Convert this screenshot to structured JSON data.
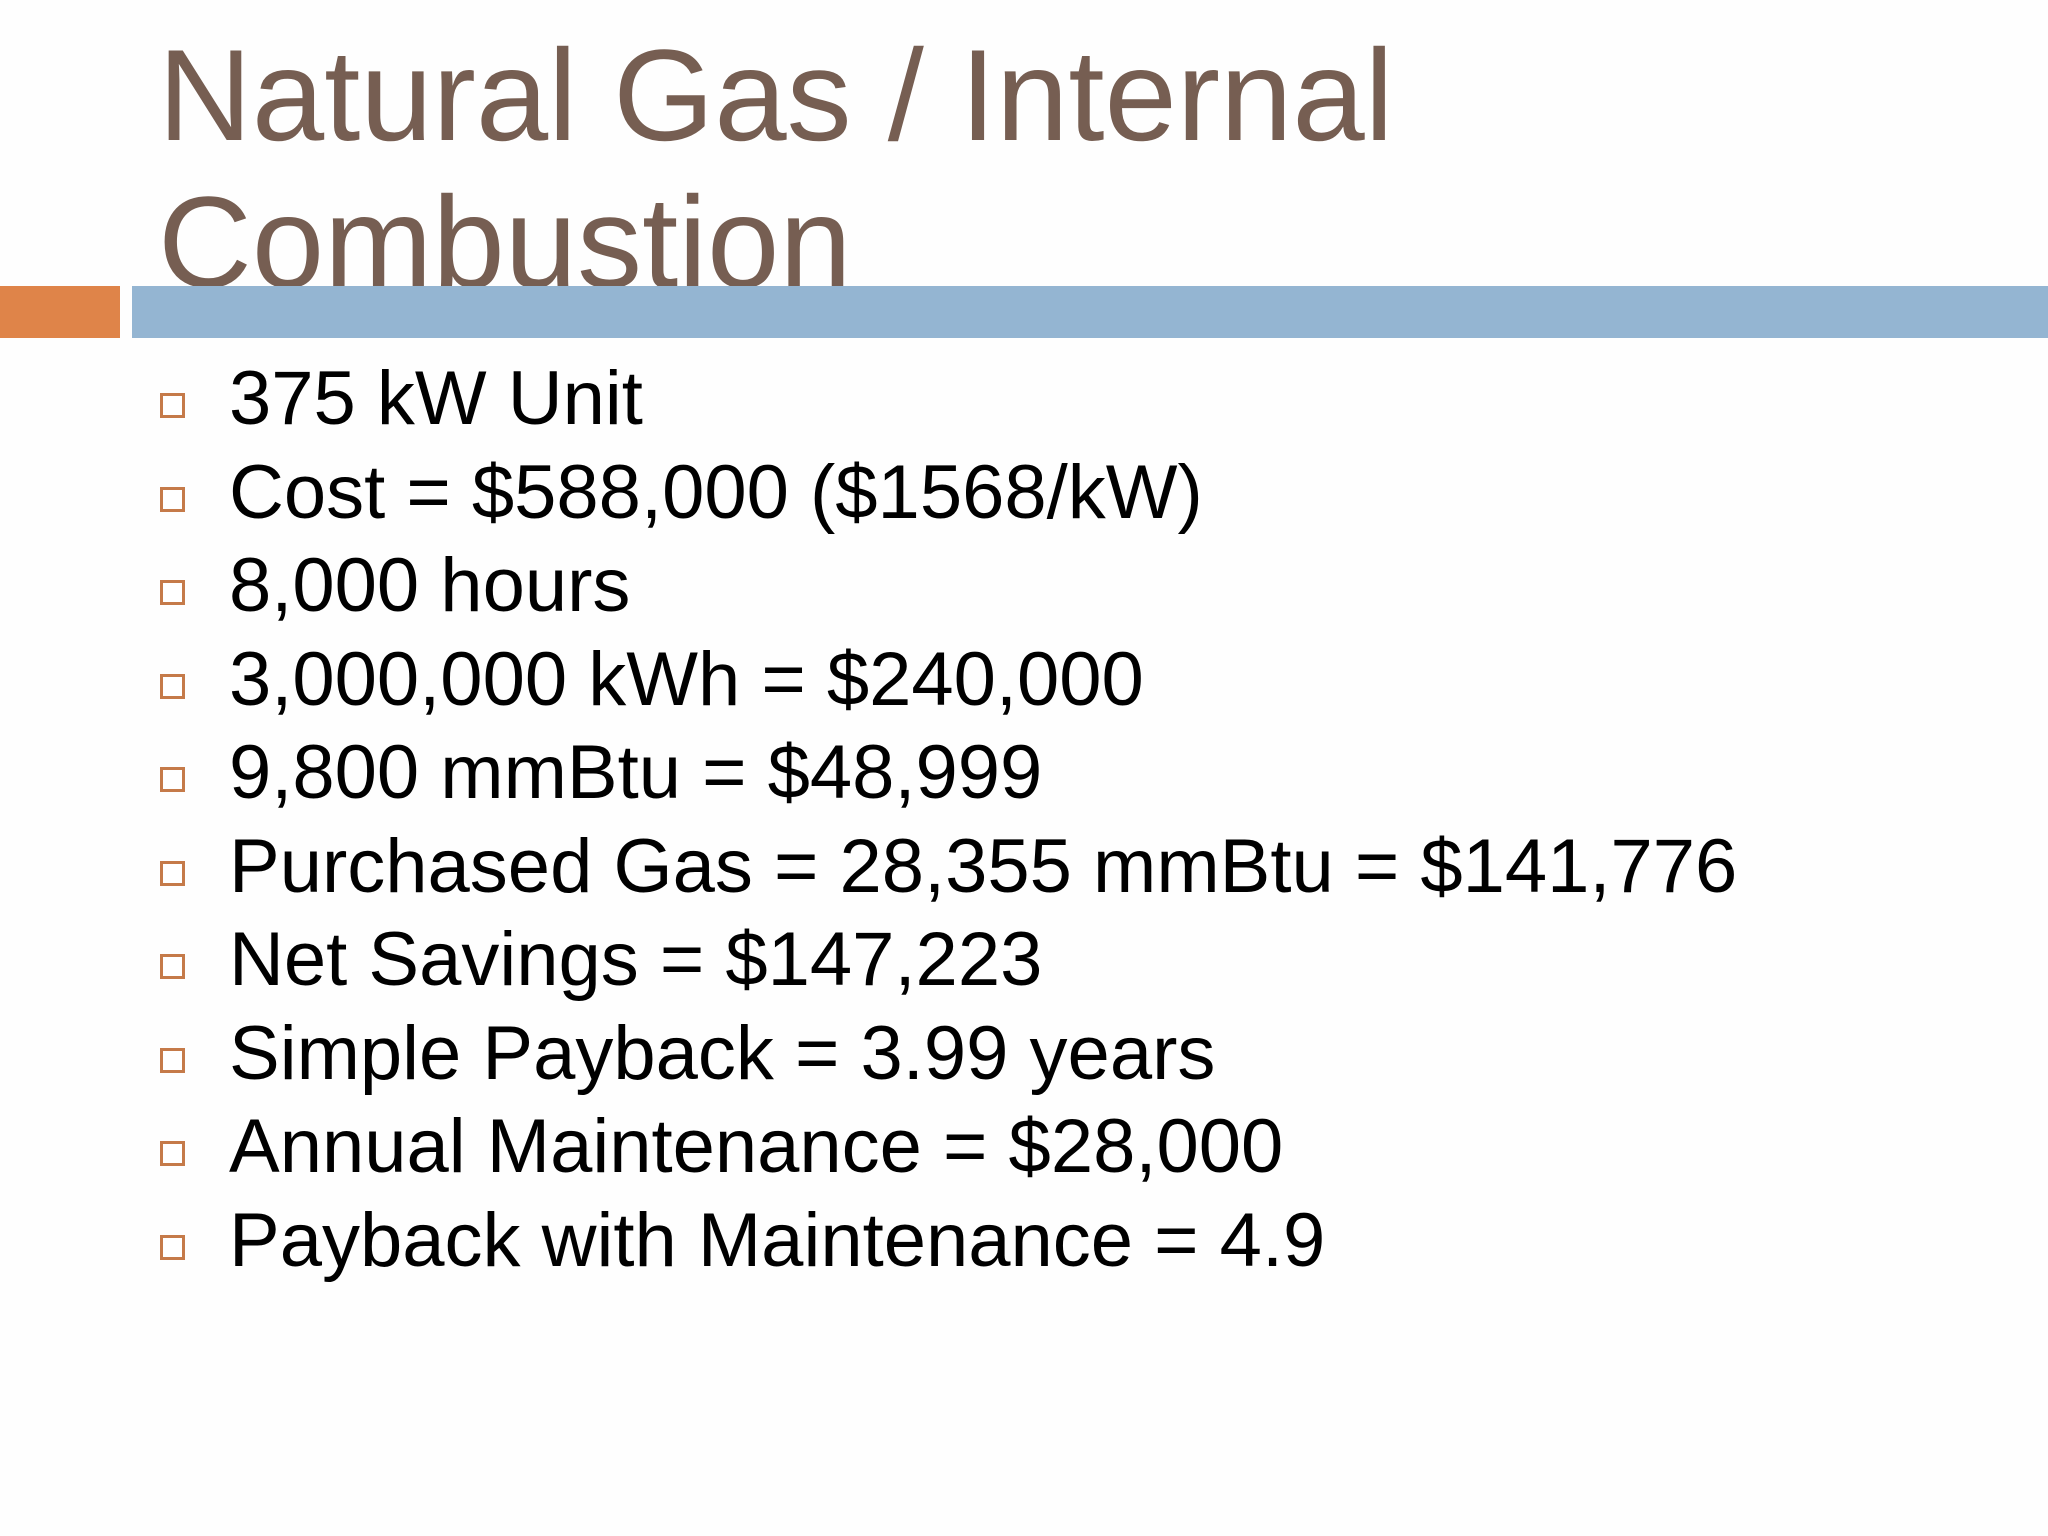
{
  "slide": {
    "title_lines": [
      "Natural Gas / Internal",
      "Combustion"
    ],
    "colors": {
      "title": "#765e52",
      "accent_bar": "#df8449",
      "rule_bar": "#94b5d2",
      "bullet_marker": "#c57a49"
    },
    "bullet_icon": "hollow-square-icon",
    "bullets": [
      "375 kW Unit",
      "Cost = $588,000 ($1568/kW)",
      "8,000 hours",
      "3,000,000 kWh = $240,000",
      "9,800 mmBtu = $48,999",
      "Purchased Gas = 28,355 mmBtu = $141,776",
      "Net Savings = $147,223",
      "Simple Payback = 3.99 years",
      "Annual Maintenance = $28,000",
      "Payback with Maintenance = 4.9"
    ]
  }
}
